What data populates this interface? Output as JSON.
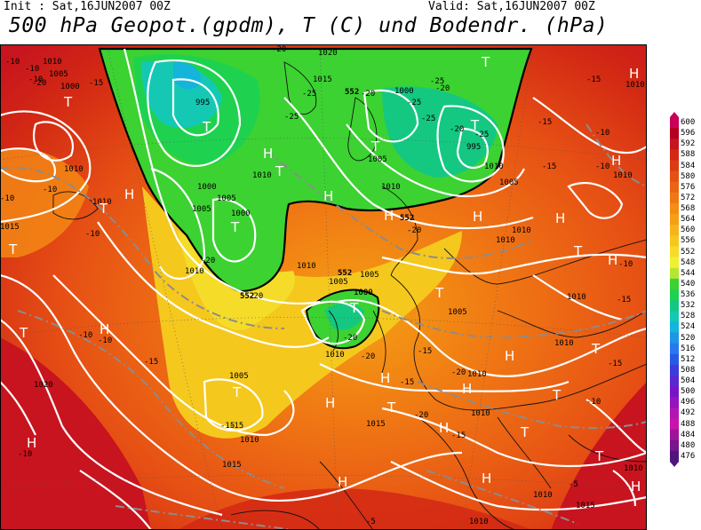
{
  "header": {
    "init": "Init : Sat,16JUN2007 00Z",
    "valid": "Valid: Sat,16JUN2007 00Z",
    "title": "500 hPa Geopot.(gpdm), T (C) und Bodendr. (hPa)"
  },
  "legend": {
    "levels": [
      "600",
      "596",
      "592",
      "588",
      "584",
      "580",
      "576",
      "572",
      "568",
      "564",
      "560",
      "556",
      "552",
      "548",
      "544",
      "540",
      "536",
      "532",
      "528",
      "524",
      "520",
      "516",
      "512",
      "508",
      "504",
      "500",
      "496",
      "492",
      "488",
      "484",
      "480",
      "476"
    ],
    "colors": [
      "#c8005a",
      "#b4001e",
      "#c8141e",
      "#d22814",
      "#dc3c14",
      "#e65014",
      "#eb6414",
      "#f07814",
      "#f58c14",
      "#f5a014",
      "#f5b41e",
      "#f5c81e",
      "#f5dc28",
      "#f0f032",
      "#b4e632",
      "#3cd232",
      "#1ed250",
      "#14c882",
      "#14c8b4",
      "#14b4dc",
      "#1e96e6",
      "#2878f0",
      "#285ae6",
      "#3c3cdc",
      "#5a28d2",
      "#7814c8",
      "#9614be",
      "#b414b4",
      "#c814aa",
      "#a0149b",
      "#78148c",
      "#50147d"
    ]
  },
  "map": {
    "pressure_labels": [
      "1010",
      "1005",
      "1000",
      "995",
      "1000",
      "1005",
      "1010",
      "1015",
      "1020",
      "1010",
      "1005",
      "1000",
      "995",
      "1010",
      "1005",
      "1000",
      "1010",
      "1005",
      "1010",
      "1005",
      "1000",
      "1010",
      "1005",
      "1010",
      "1010",
      "1010",
      "1010",
      "1005",
      "1010",
      "1015",
      "1020",
      "1010",
      "1015",
      "1010",
      "1010",
      "1010",
      "1015",
      "1010",
      "1010",
      "1010",
      "1005",
      "1000",
      "1015",
      "1010",
      "1010"
    ],
    "temp_labels": [
      "-10",
      "-10",
      "-20",
      "-15",
      "-20",
      "-20",
      "-25",
      "-25",
      "-20",
      "-25",
      "-25",
      "-25",
      "-20",
      "-25",
      "-20",
      "-15",
      "-15",
      "-10",
      "-10",
      "-10",
      "-15",
      "-20",
      "-20",
      "-20",
      "-20",
      "-15",
      "-15",
      "-15",
      "-15",
      "-10",
      "-10",
      "-10",
      "-10",
      "-15",
      "-15",
      "-10",
      "-5",
      "-5",
      "-20",
      "-20",
      "-15",
      "-10",
      "-15",
      "-10",
      "-10"
    ],
    "geo_labels": [
      "552",
      "552",
      "552",
      "552"
    ],
    "highs": [
      "H",
      "H",
      "H",
      "H",
      "H",
      "H",
      "H",
      "H",
      "H",
      "H",
      "H",
      "H",
      "H",
      "H",
      "H",
      "H",
      "H",
      "H",
      "H"
    ],
    "lows": [
      "T",
      "T",
      "T",
      "T",
      "T",
      "T",
      "T",
      "T",
      "T",
      "T",
      "T",
      "T",
      "T",
      "T",
      "T",
      "T",
      "T",
      "T",
      "T"
    ]
  }
}
